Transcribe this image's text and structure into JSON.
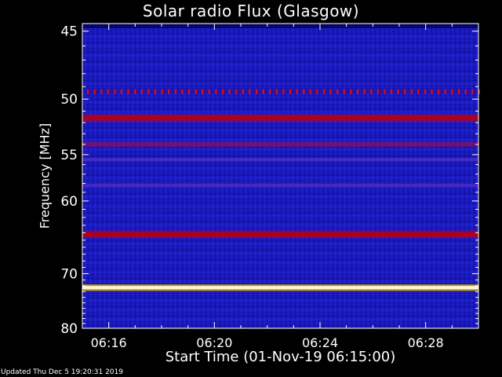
{
  "chart_data": {
    "type": "heatmap",
    "title": "Solar radio Flux (Glasgow)",
    "xlabel": "Start Time (01-Nov-19 06:15:00)",
    "ylabel": "Frequency [MHz]",
    "x_start": "06:15:00",
    "x_end": "06:30:00",
    "x_ticks": [
      "06:16",
      "06:20",
      "06:24",
      "06:28"
    ],
    "x_tick_values_min": [
      16,
      20,
      24,
      28
    ],
    "x_range_min": [
      15,
      30
    ],
    "ylim": [
      80,
      44.5
    ],
    "y_ticks": [
      45,
      50,
      55,
      60,
      70,
      80
    ],
    "y_scale": "reciprocal (1/f)",
    "colormap": "blue-red-yellow-white",
    "colors": {
      "background": "#000000",
      "low": "#0a0a8c",
      "mid": "#2a2ae0",
      "high": "#b00018",
      "peak": "#fff8d0"
    },
    "bands": [
      {
        "freq_mhz": 49.4,
        "intensity": "high (dotted)"
      },
      {
        "freq_mhz": 51.6,
        "intensity": "high"
      },
      {
        "freq_mhz": 54.0,
        "intensity": "medium-high"
      },
      {
        "freq_mhz": 55.5,
        "intensity": "medium"
      },
      {
        "freq_mhz": 58.2,
        "intensity": "medium"
      },
      {
        "freq_mhz": 64.2,
        "intensity": "high"
      },
      {
        "freq_mhz": 72.3,
        "intensity": "peak"
      }
    ],
    "grid": false,
    "legend": "none"
  },
  "footer": "Updated Thu Dec  5 19:20:31 2019"
}
